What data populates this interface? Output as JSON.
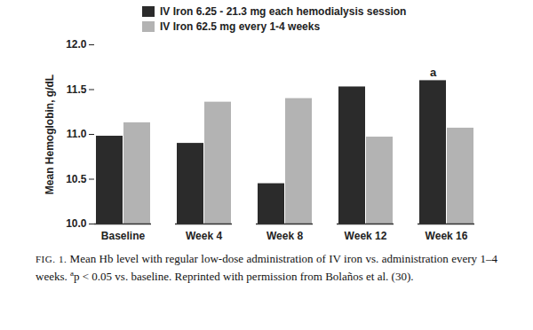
{
  "chart_data": {
    "type": "bar",
    "categories": [
      "Baseline",
      "Week 4",
      "Week 8",
      "Week 12",
      "Week 16"
    ],
    "series": [
      {
        "name": "IV Iron 6.25 - 21.3 mg each hemodialysis session",
        "color": "#2b2b2b",
        "values": [
          10.98,
          10.9,
          10.45,
          11.53,
          11.6
        ]
      },
      {
        "name": "IV Iron 62.5 mg every 1-4 weeks",
        "color": "#b3b3b3",
        "values": [
          11.13,
          11.36,
          11.4,
          10.97,
          11.07
        ]
      }
    ],
    "y_label": "Mean Hemoglobin, g/dL",
    "ylim": [
      10.0,
      12.0
    ],
    "yticks": [
      {
        "value": 10,
        "label": "10.0"
      },
      10.5,
      {
        "value": 11,
        "label": "11.0"
      },
      11.5,
      {
        "value": 12,
        "label": "12.0"
      }
    ],
    "annotations": [
      {
        "category": "Week 16",
        "series": "IV Iron 6.25 - 21.3 mg each hemodialysis session",
        "text": "a"
      }
    ],
    "legend": "top",
    "grid": false,
    "caption": {
      "label": "FIG. 1.",
      "text": "Mean Hb level with regular low-dose administration of IV iron vs. administration every 1–4 weeks.",
      "footnote_marker": "a",
      "footnote": "p < 0.05 vs. baseline.",
      "source": "Reprinted with permission from Bolaños et al. (30)."
    }
  }
}
